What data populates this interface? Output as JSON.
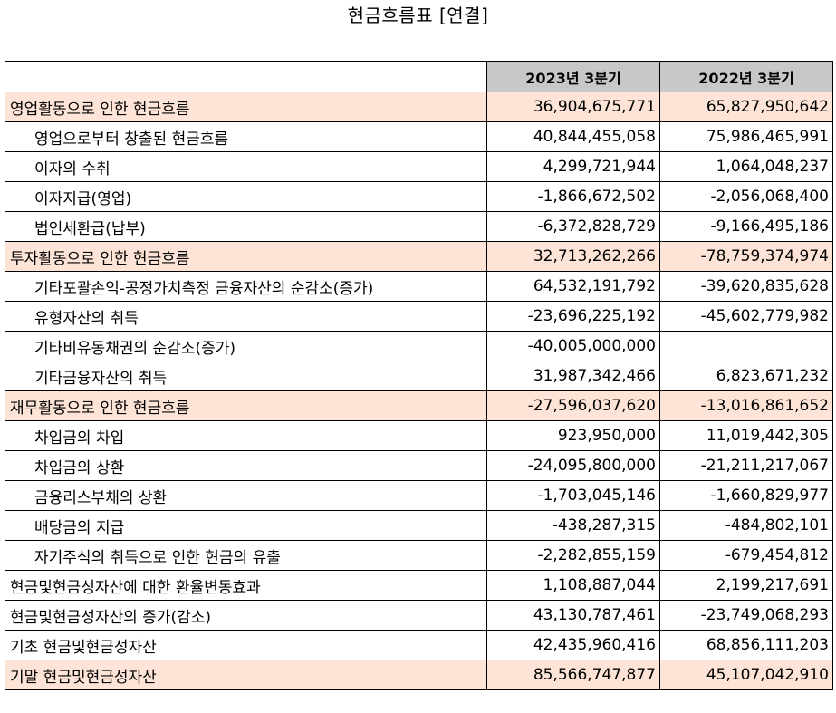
{
  "title": "현금흐름표 [연결]",
  "columns": [
    "",
    "2023년 3분기",
    "2022년 3분기"
  ],
  "rows": [
    {
      "label": "영업활동으로 인한 현금흐름",
      "v2023": "36,904,675,771",
      "v2022": "65,827,950,642",
      "highlight": true,
      "indent": false
    },
    {
      "label": "영업으로부터 창출된 현금흐름",
      "v2023": "40,844,455,058",
      "v2022": "75,986,465,991",
      "highlight": false,
      "indent": true
    },
    {
      "label": "이자의 수취",
      "v2023": "4,299,721,944",
      "v2022": "1,064,048,237",
      "highlight": false,
      "indent": true
    },
    {
      "label": "이자지급(영업)",
      "v2023": "-1,866,672,502",
      "v2022": "-2,056,068,400",
      "highlight": false,
      "indent": true
    },
    {
      "label": "법인세환급(납부)",
      "v2023": "-6,372,828,729",
      "v2022": "-9,166,495,186",
      "highlight": false,
      "indent": true
    },
    {
      "label": "투자활동으로 인한 현금흐름",
      "v2023": "32,713,262,266",
      "v2022": "-78,759,374,974",
      "highlight": true,
      "indent": false
    },
    {
      "label": "기타포괄손익-공정가치측정 금융자산의 순감소(증가)",
      "v2023": "64,532,191,792",
      "v2022": "-39,620,835,628",
      "highlight": false,
      "indent": true
    },
    {
      "label": "유형자산의 취득",
      "v2023": "-23,696,225,192",
      "v2022": "-45,602,779,982",
      "highlight": false,
      "indent": true
    },
    {
      "label": "기타비유동채권의 순감소(증가)",
      "v2023": "-40,005,000,000",
      "v2022": "",
      "highlight": false,
      "indent": true
    },
    {
      "label": "기타금융자산의 취득",
      "v2023": "31,987,342,466",
      "v2022": "6,823,671,232",
      "highlight": false,
      "indent": true
    },
    {
      "label": "재무활동으로 인한 현금흐름",
      "v2023": "-27,596,037,620",
      "v2022": "-13,016,861,652",
      "highlight": true,
      "indent": false
    },
    {
      "label": "차입금의 차입",
      "v2023": "923,950,000",
      "v2022": "11,019,442,305",
      "highlight": false,
      "indent": true
    },
    {
      "label": "차입금의 상환",
      "v2023": "-24,095,800,000",
      "v2022": "-21,211,217,067",
      "highlight": false,
      "indent": true
    },
    {
      "label": "금융리스부채의 상환",
      "v2023": "-1,703,045,146",
      "v2022": "-1,660,829,977",
      "highlight": false,
      "indent": true
    },
    {
      "label": "배당금의 지급",
      "v2023": "-438,287,315",
      "v2022": "-484,802,101",
      "highlight": false,
      "indent": true
    },
    {
      "label": "자기주식의 취득으로 인한 현금의 유출",
      "v2023": "-2,282,855,159",
      "v2022": "-679,454,812",
      "highlight": false,
      "indent": true
    },
    {
      "label": "현금및현금성자산에 대한 환율변동효과",
      "v2023": "1,108,887,044",
      "v2022": "2,199,217,691",
      "highlight": false,
      "indent": false
    },
    {
      "label": "현금및현금성자산의 증가(감소)",
      "v2023": "43,130,787,461",
      "v2022": "-23,749,068,293",
      "highlight": false,
      "indent": false
    },
    {
      "label": "기초 현금및현금성자산",
      "v2023": "42,435,960,416",
      "v2022": "68,856,111,203",
      "highlight": false,
      "indent": false
    },
    {
      "label": "기말 현금및현금성자산",
      "v2023": "85,566,747,877",
      "v2022": "45,107,042,910",
      "highlight": true,
      "indent": false
    }
  ],
  "colors": {
    "header_bg": "#c8c8c8",
    "highlight_bg": "#fde4d6",
    "border": "#000000"
  }
}
